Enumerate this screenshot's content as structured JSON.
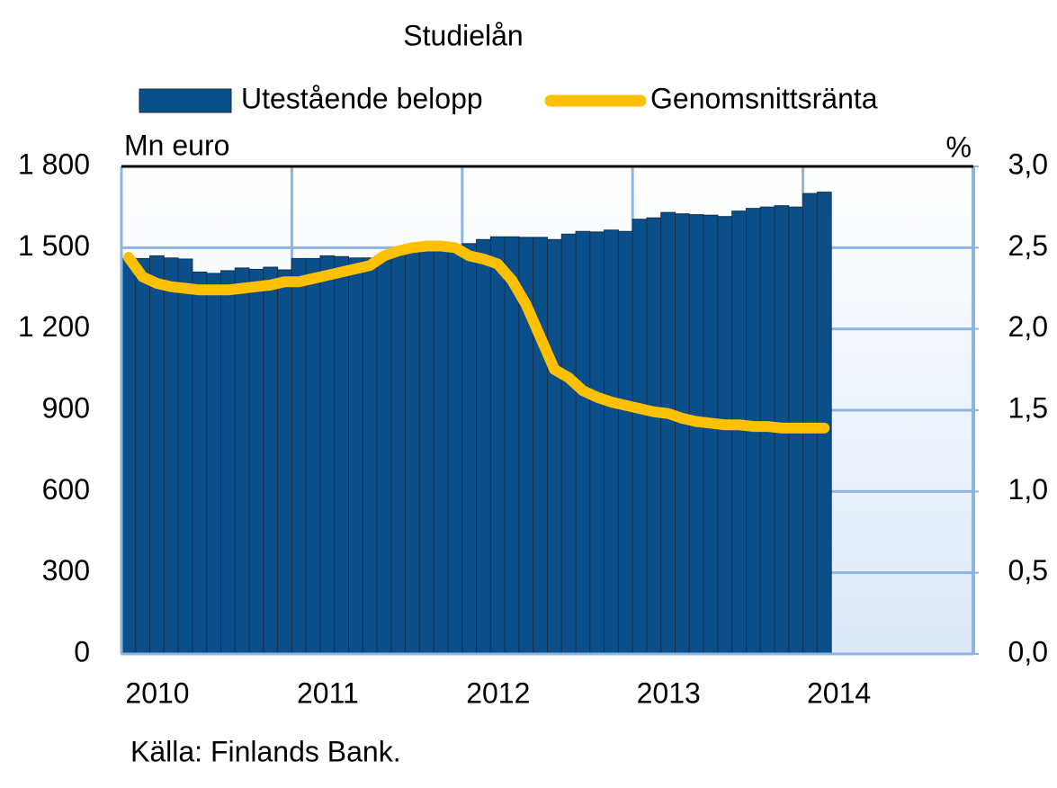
{
  "chart_data": {
    "type": "bar_line",
    "title": "Studielån",
    "y_label": "Mn euro",
    "y2_label": "%",
    "source": "Källa: Finlands Bank.",
    "categories": [
      "2010",
      null,
      null,
      null,
      null,
      null,
      null,
      null,
      null,
      null,
      null,
      null,
      "2011",
      null,
      null,
      null,
      null,
      null,
      null,
      null,
      null,
      null,
      null,
      null,
      "2012",
      null,
      null,
      null,
      null,
      null,
      null,
      null,
      null,
      null,
      null,
      null,
      "2013",
      null,
      null,
      null,
      null,
      null,
      null,
      null,
      null,
      null,
      null,
      null,
      "2014",
      null,
      null,
      null,
      null,
      null,
      null,
      null,
      null,
      null,
      null,
      null
    ],
    "series": [
      {
        "name": "Utestående belopp",
        "type": "bar",
        "color": "#0b4f8a",
        "values": [
          1460,
          1460,
          1470,
          1462,
          1458,
          1410,
          1405,
          1415,
          1425,
          1420,
          1428,
          1418,
          1460,
          1460,
          1470,
          1467,
          1462,
          1462,
          1455,
          1485,
          1495,
          1500,
          1500,
          1495,
          1515,
          1530,
          1540,
          1540,
          1538,
          1538,
          1530,
          1550,
          1560,
          1558,
          1565,
          1560,
          1605,
          1610,
          1630,
          1625,
          1622,
          1620,
          1615,
          1635,
          1645,
          1650,
          1655,
          1650,
          1700,
          1705,
          null,
          null,
          null,
          null,
          null,
          null,
          null,
          null,
          null,
          null
        ]
      },
      {
        "name": "Genomsnittsränta",
        "type": "line",
        "axis": "y2",
        "color": "#ffc000",
        "values": [
          2.44,
          2.32,
          2.28,
          2.26,
          2.25,
          2.24,
          2.24,
          2.24,
          2.25,
          2.26,
          2.27,
          2.29,
          2.29,
          2.31,
          2.33,
          2.35,
          2.37,
          2.39,
          2.45,
          2.48,
          2.5,
          2.51,
          2.51,
          2.5,
          2.45,
          2.43,
          2.4,
          2.3,
          2.15,
          1.95,
          1.75,
          1.7,
          1.62,
          1.58,
          1.55,
          1.53,
          1.51,
          1.49,
          1.48,
          1.45,
          1.43,
          1.42,
          1.41,
          1.41,
          1.4,
          1.4,
          1.39,
          1.39,
          1.39,
          1.39,
          null,
          null,
          null,
          null,
          null,
          null,
          null,
          null,
          null,
          null
        ]
      }
    ],
    "ylim": [
      0,
      1800
    ],
    "yticks": [
      0,
      300,
      600,
      900,
      {
        "value": 1200,
        "label": "1 200"
      },
      {
        "value": 1500,
        "label": "1 500"
      },
      {
        "value": 1800,
        "label": "1 800"
      }
    ],
    "y2lim": [
      0,
      3
    ],
    "y2ticks": [
      {
        "value": 0,
        "label": "0,0"
      },
      {
        "value": 0.5,
        "label": "0,5"
      },
      {
        "value": 1,
        "label": "1,0"
      },
      {
        "value": 1.5,
        "label": "1,5"
      },
      {
        "value": 2,
        "label": "2,0"
      },
      {
        "value": 2.5,
        "label": "2,5"
      },
      {
        "value": 3,
        "label": "3,0"
      }
    ],
    "grid": true
  }
}
